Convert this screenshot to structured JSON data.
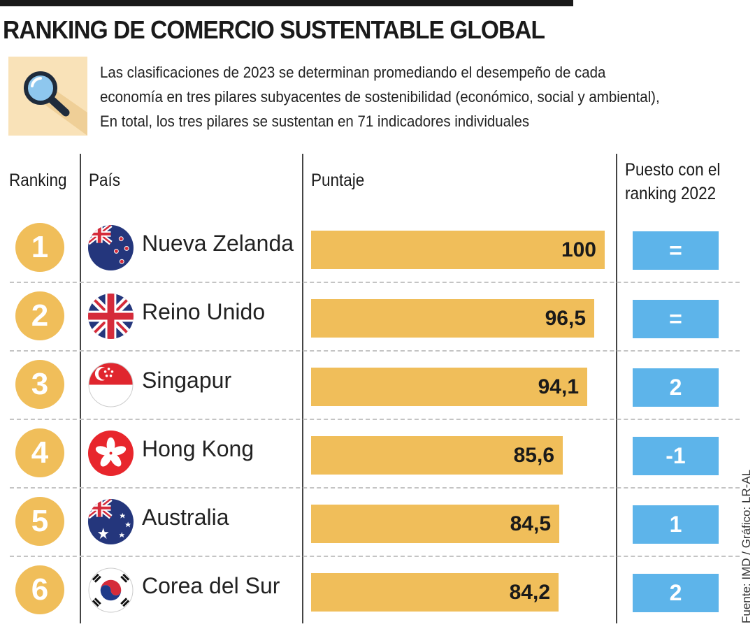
{
  "title": "RANKING DE COMERCIO SUSTENTABLE GLOBAL",
  "intro": {
    "line1": "Las clasificaciones de 2023 se determinan promediando el desempeño de cada",
    "line2": "economía en tres pilares subyacentes de sostenibilidad (económico, social y ambiental),",
    "line3": "En total, los tres pilares se sustentan en 71 indicadores individuales",
    "icon": "magnifier-icon"
  },
  "headers": {
    "ranking": "Ranking",
    "pais": "País",
    "puntaje": "Puntaje",
    "puesto_line1": "Puesto con el",
    "puesto_line2": "ranking 2022"
  },
  "source": "Fuente: IMD / Gráfico: LR-AL",
  "colors": {
    "bar": "#f0be5a",
    "change": "#5db4ea",
    "badge": "#f0be5a"
  },
  "chart_data": {
    "type": "bar",
    "categories": [
      "Nueva Zelanda",
      "Reino Unido",
      "Singapur",
      "Hong Kong",
      "Australia",
      "Corea del Sur"
    ],
    "values": [
      100,
      96.5,
      94.1,
      85.6,
      84.5,
      84.2
    ],
    "ylim": [
      0,
      100
    ],
    "rows": [
      {
        "rank": "1",
        "country": "Nueva Zelanda",
        "score": 100,
        "score_label": "100",
        "change": "=",
        "flag": "new-zealand-flag-icon"
      },
      {
        "rank": "2",
        "country": "Reino Unido",
        "score": 96.5,
        "score_label": "96,5",
        "change": "=",
        "flag": "uk-flag-icon"
      },
      {
        "rank": "3",
        "country": "Singapur",
        "score": 94.1,
        "score_label": "94,1",
        "change": "2",
        "flag": "singapore-flag-icon"
      },
      {
        "rank": "4",
        "country": "Hong Kong",
        "score": 85.6,
        "score_label": "85,6",
        "change": "-1",
        "flag": "hong-kong-flag-icon"
      },
      {
        "rank": "5",
        "country": "Australia",
        "score": 84.5,
        "score_label": "84,5",
        "change": "1",
        "flag": "australia-flag-icon"
      },
      {
        "rank": "6",
        "country": "Corea del Sur",
        "score": 84.2,
        "score_label": "84,2",
        "change": "2",
        "flag": "south-korea-flag-icon"
      }
    ]
  }
}
